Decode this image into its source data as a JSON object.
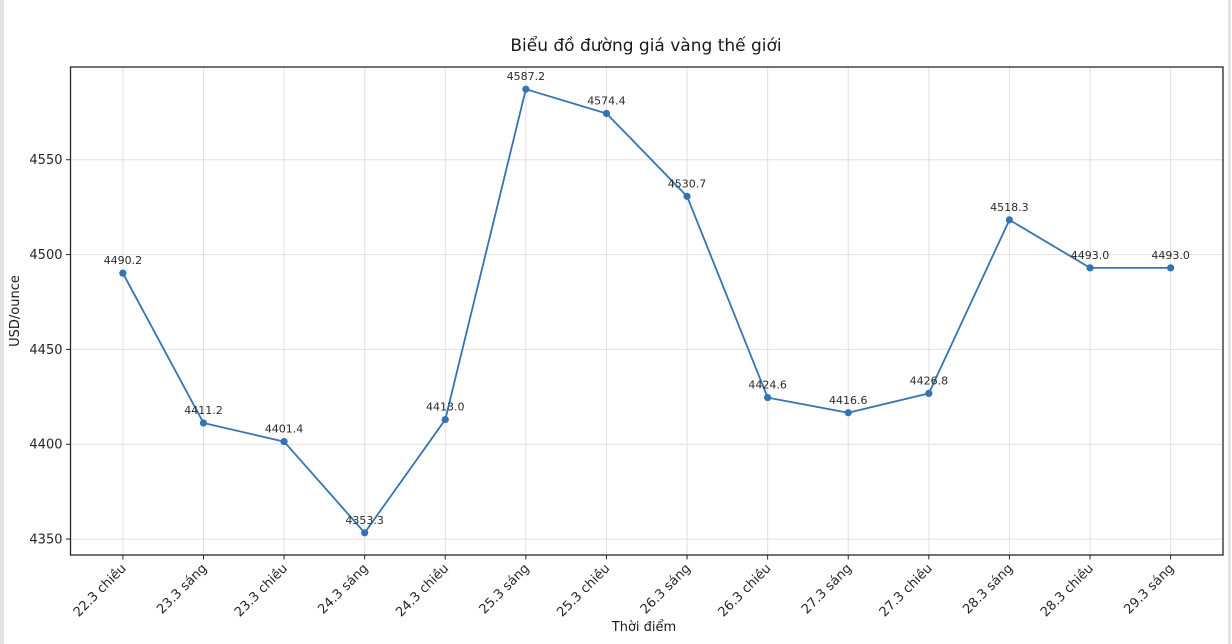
{
  "window": {
    "background": "#ffffff",
    "edge_border_color": "#e3e3e3"
  },
  "chart_data": {
    "type": "line",
    "title": "Biểu đồ đường giá vàng thế giới",
    "xlabel": "Thời điểm",
    "ylabel": "USD/ounce",
    "categories": [
      "22.3 chiều",
      "23.3 sáng",
      "23.3 chiều",
      "24.3 sáng",
      "24.3 chiều",
      "25.3 sáng",
      "25.3 chiều",
      "26.3 sáng",
      "26.3 chiều",
      "27.3 sáng",
      "27.3 chiều",
      "28.3 sáng",
      "28.3 chiều",
      "29.3 sáng"
    ],
    "values": [
      4490.2,
      4411.2,
      4401.4,
      4353.3,
      4413.0,
      4587.2,
      4574.4,
      4530.7,
      4424.6,
      4416.6,
      4426.8,
      4518.3,
      4493.0,
      4493.0
    ],
    "point_labels": [
      "4490.2",
      "4411.2",
      "4401.4",
      "4353.3",
      "4413.0",
      "4587.2",
      "4574.4",
      "4530.7",
      "4424.6",
      "4416.6",
      "4426.8",
      "4518.3",
      "4493.0",
      "4493.0"
    ],
    "yticks": [
      4350,
      4400,
      4450,
      4500,
      4550
    ],
    "ylim": [
      4341.6,
      4598.9
    ],
    "x_margin": 0.65,
    "grid": true,
    "legend": "none",
    "colors": {
      "line": "#3574b2",
      "marker": "#3574b2",
      "grid": "#e0e0e0",
      "spine": "#262626",
      "text": "#262626"
    }
  }
}
